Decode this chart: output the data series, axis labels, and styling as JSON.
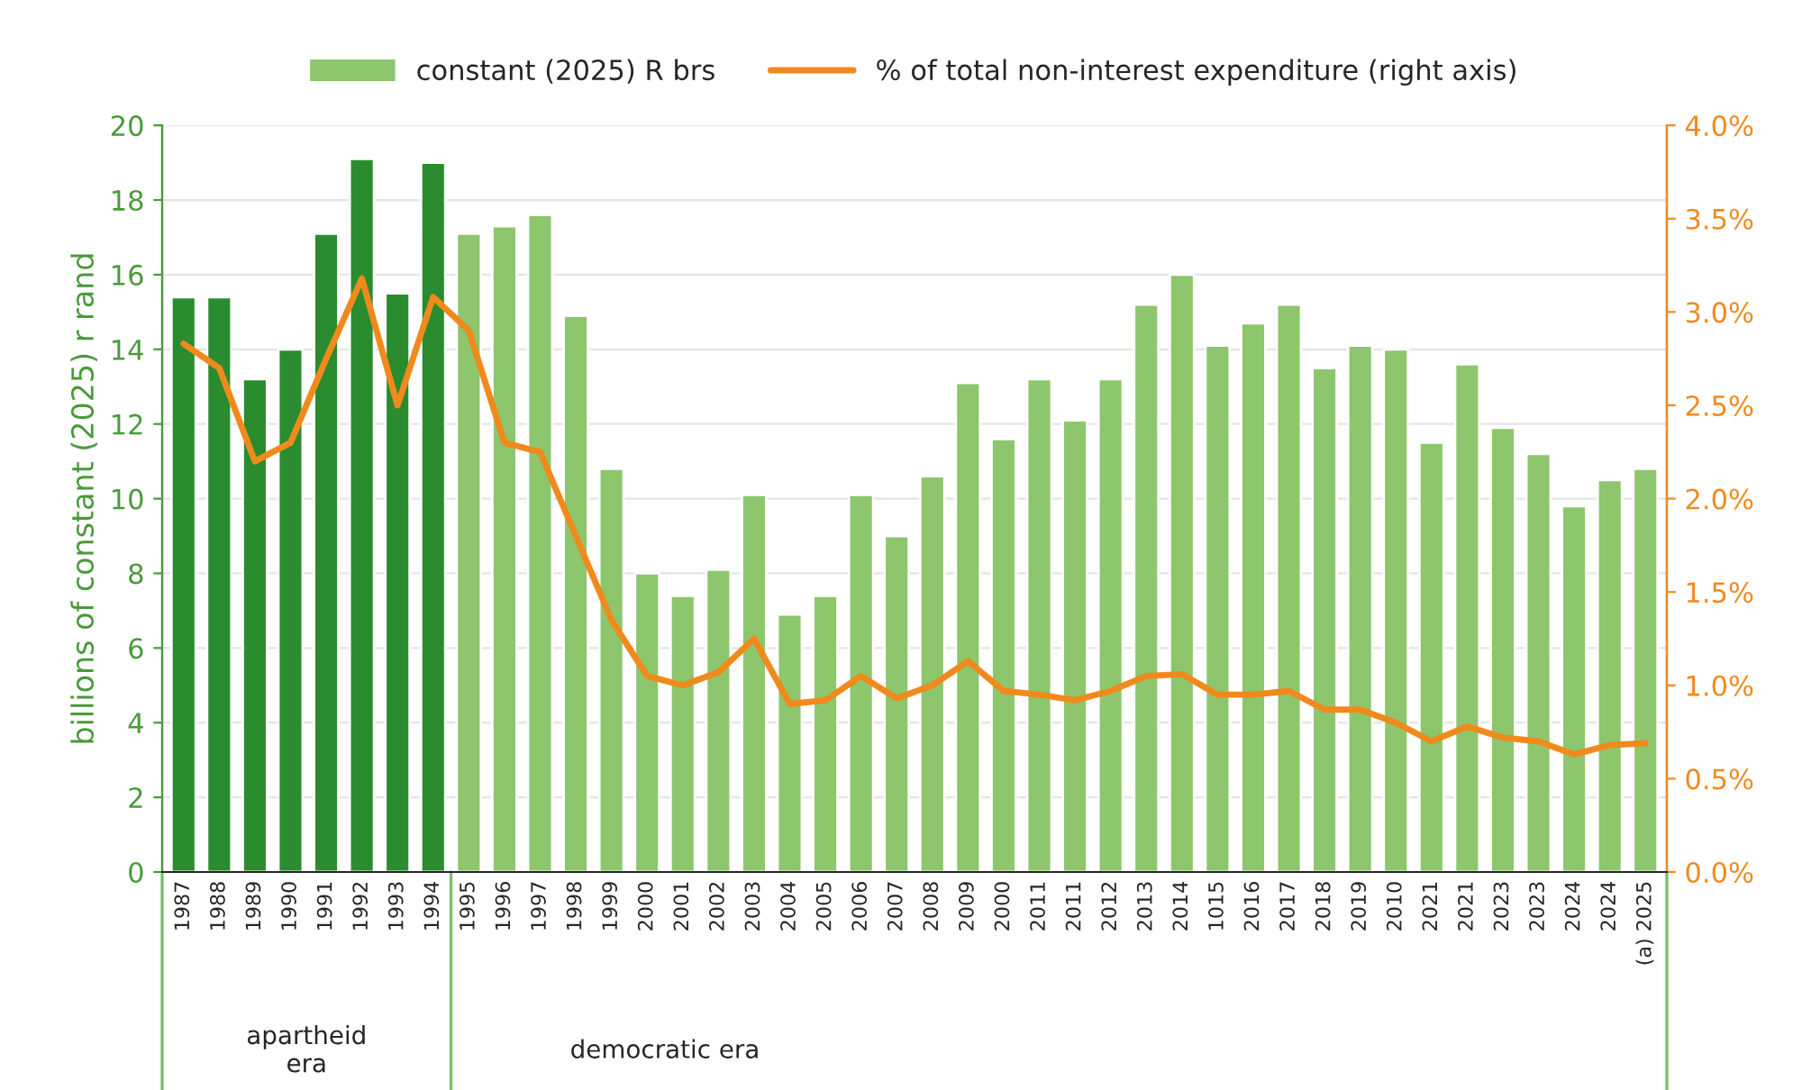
{
  "chart_data": {
    "type": "bar",
    "categories": [
      "1987",
      "1988",
      "1989",
      "1990",
      "1991",
      "1992",
      "1993",
      "1994",
      "1995",
      "1996",
      "1997",
      "1998",
      "1999",
      "2000",
      "2001",
      "2002",
      "2003",
      "2004",
      "2005",
      "2006",
      "2007",
      "2008",
      "2009",
      "2000",
      "2011",
      "2011",
      "2012",
      "2013",
      "2014",
      "1015",
      "2016",
      "2017",
      "2018",
      "2019",
      "2010",
      "2021",
      "2021",
      "2023",
      "2023",
      "2024",
      "2024",
      "(a) 2025"
    ],
    "series": [
      {
        "name": "constant (2025) R brs",
        "color": "#8dc66d",
        "colors": [
          "#2a8c2e",
          "#2a8c2e",
          "#2a8c2e",
          "#2a8c2e",
          "#2a8c2e",
          "#2a8c2e",
          "#2a8c2e",
          "#2a8c2e",
          "#8dc66d",
          "#8dc66d",
          "#8dc66d",
          "#8dc66d",
          "#8dc66d",
          "#8dc66d",
          "#8dc66d",
          "#8dc66d",
          "#8dc66d",
          "#8dc66d",
          "#8dc66d",
          "#8dc66d",
          "#8dc66d",
          "#8dc66d",
          "#8dc66d",
          "#8dc66d",
          "#8dc66d",
          "#8dc66d",
          "#8dc66d",
          "#8dc66d",
          "#8dc66d",
          "#8dc66d",
          "#8dc66d",
          "#8dc66d",
          "#8dc66d",
          "#8dc66d",
          "#8dc66d",
          "#8dc66d",
          "#8dc66d",
          "#8dc66d",
          "#8dc66d",
          "#8dc66d",
          "#8dc66d",
          "#8dc66d"
        ],
        "values": [
          15.4,
          15.4,
          13.2,
          14.0,
          17.1,
          19.1,
          15.5,
          19.0,
          17.1,
          17.3,
          17.6,
          14.9,
          10.8,
          8.0,
          7.4,
          8.1,
          10.1,
          6.9,
          7.4,
          10.1,
          9.0,
          10.6,
          13.1,
          11.6,
          13.2,
          12.1,
          13.2,
          15.2,
          16.0,
          14.1,
          14.7,
          15.2,
          13.5,
          14.1,
          14.0,
          11.5,
          13.6,
          11.9,
          11.2,
          9.8,
          10.5,
          10.8
        ]
      },
      {
        "name": "% of total non-interest expenditure (right axis)",
        "type": "line",
        "axis": "y2",
        "color": "#f08a1c",
        "values": [
          2.83,
          2.7,
          2.2,
          2.3,
          2.75,
          3.18,
          2.5,
          3.08,
          2.9,
          2.3,
          2.25,
          1.8,
          1.35,
          1.05,
          1.0,
          1.07,
          1.25,
          0.9,
          0.92,
          1.05,
          0.93,
          1.0,
          1.13,
          0.97,
          0.95,
          0.92,
          0.97,
          1.05,
          1.06,
          0.95,
          0.95,
          0.97,
          0.87,
          0.87,
          0.8,
          0.7,
          0.78,
          0.72,
          0.7,
          0.63,
          0.68,
          0.69
        ]
      }
    ],
    "ylabel": "billions of constant (2025) r rand",
    "ylim": [
      0,
      20
    ],
    "yticks": [
      0,
      2,
      4,
      6,
      8,
      10,
      12,
      14,
      16,
      18,
      20
    ],
    "y2lim": [
      0,
      4
    ],
    "y2ticks": [
      {
        "value": 0,
        "label": "0.0%"
      },
      {
        "value": 0.5,
        "label": "0.5%"
      },
      {
        "value": 1,
        "label": "1.0%"
      },
      {
        "value": 1.5,
        "label": "1.5%"
      },
      {
        "value": 2,
        "label": "2.0%"
      },
      {
        "value": 2.5,
        "label": "2.5%"
      },
      {
        "value": 3,
        "label": "3.0%"
      },
      {
        "value": 3.5,
        "label": "3.5%"
      },
      {
        "value": 4,
        "label": "4.0%"
      }
    ],
    "annotations": [
      "apartheid\nera",
      "democratic era"
    ],
    "grid": "y",
    "legend": "top",
    "marker": "none",
    "line_style": "solid"
  }
}
